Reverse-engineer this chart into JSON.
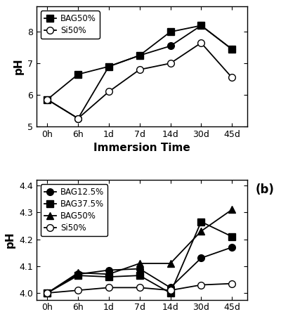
{
  "top": {
    "x_labels": [
      "0h",
      "6h",
      "1d",
      "7d",
      "14d",
      "30d",
      "45d"
    ],
    "x_vals": [
      0,
      1,
      2,
      3,
      4,
      5,
      6
    ],
    "series": [
      {
        "label": "BAG12.5%",
        "marker": "o",
        "fillstyle": "full",
        "y": [
          5.85,
          5.25,
          6.9,
          7.25,
          7.55,
          8.2,
          7.45
        ]
      },
      {
        "label": "BAG50%",
        "marker": "s",
        "fillstyle": "full",
        "y": [
          5.85,
          6.65,
          6.9,
          7.25,
          8.0,
          8.2,
          7.45
        ]
      },
      {
        "label": "Si50%",
        "marker": "o",
        "fillstyle": "none",
        "y": [
          5.85,
          5.25,
          6.1,
          6.8,
          7.0,
          7.65,
          6.55
        ]
      }
    ],
    "legend_entries": [
      {
        "label": "BAG50%",
        "marker": "s",
        "fillstyle": "full"
      },
      {
        "label": "Si50%",
        "marker": "o",
        "fillstyle": "none"
      }
    ],
    "ylabel": "pH",
    "xlabel": "Immersion Time",
    "ylim": [
      5.0,
      8.8
    ],
    "yticks": [
      5,
      6,
      7,
      8
    ]
  },
  "bottom": {
    "x_labels": [
      "0h",
      "6h",
      "1d",
      "7d",
      "14d",
      "30d",
      "45d"
    ],
    "x_vals": [
      0,
      1,
      2,
      3,
      4,
      5,
      6
    ],
    "series": [
      {
        "label": "BAG12.5%",
        "marker": "o",
        "fillstyle": "full",
        "y": [
          4.0,
          4.07,
          4.085,
          4.09,
          4.02,
          4.13,
          4.17
        ]
      },
      {
        "label": "BAG37.5%",
        "marker": "s",
        "fillstyle": "full",
        "y": [
          4.0,
          4.065,
          4.06,
          4.065,
          4.0,
          4.265,
          4.21
        ]
      },
      {
        "label": "BAG50%",
        "marker": "^",
        "fillstyle": "full",
        "y": [
          4.0,
          4.075,
          4.07,
          4.11,
          4.11,
          4.23,
          4.31
        ]
      },
      {
        "label": "Si50%",
        "marker": "o",
        "fillstyle": "none",
        "y": [
          4.0,
          4.01,
          4.02,
          4.02,
          4.01,
          4.03,
          4.035
        ]
      }
    ],
    "legend_entries": [
      {
        "label": "BAG12.5%",
        "marker": "o",
        "fillstyle": "full"
      },
      {
        "label": "BAG37.5%",
        "marker": "s",
        "fillstyle": "full"
      },
      {
        "label": "BAG50%",
        "marker": "^",
        "fillstyle": "full"
      },
      {
        "label": "Si50%",
        "marker": "o",
        "fillstyle": "none"
      }
    ],
    "ylabel": "pH",
    "ylim": [
      3.975,
      4.42
    ],
    "yticks": [
      4.0,
      4.1,
      4.2,
      4.3,
      4.4
    ],
    "annotation": "(b)"
  },
  "markersize": 7,
  "linewidth": 1.3,
  "legend_fontsize": 8.5,
  "tick_fontsize": 9,
  "label_fontsize": 11
}
